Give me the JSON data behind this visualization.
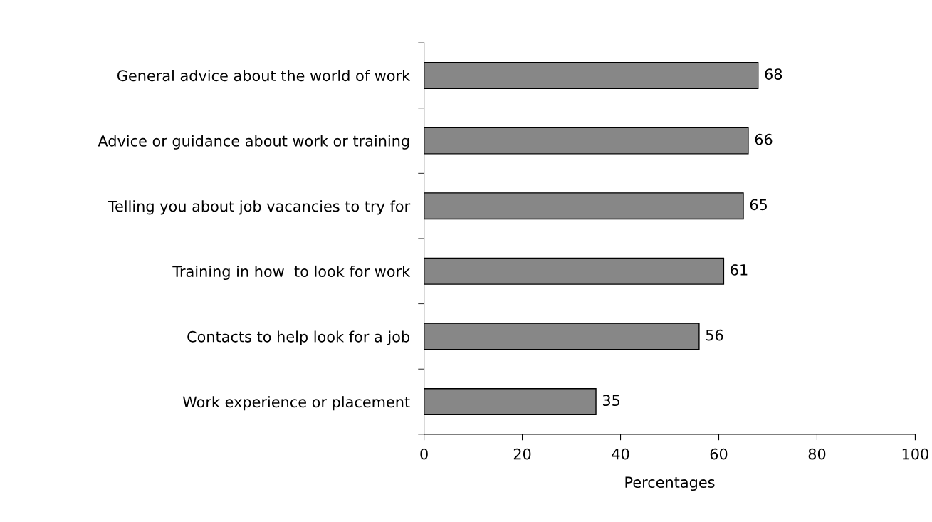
{
  "chart_data": {
    "type": "bar",
    "orientation": "horizontal",
    "xlabel": "Percentages",
    "categories": [
      "General advice about the world of work",
      "Advice or guidance about work or training",
      "Telling you about job vacancies to try for",
      "Training in how  to look for work",
      "Contacts to help look for a job",
      "Work experience or placement"
    ],
    "values": [
      68,
      66,
      65,
      61,
      56,
      35
    ],
    "color": "#878787",
    "data_labels": true,
    "xlim": [
      0,
      100
    ],
    "xticks": [
      0,
      20,
      40,
      60,
      80,
      100
    ],
    "grid": false
  }
}
